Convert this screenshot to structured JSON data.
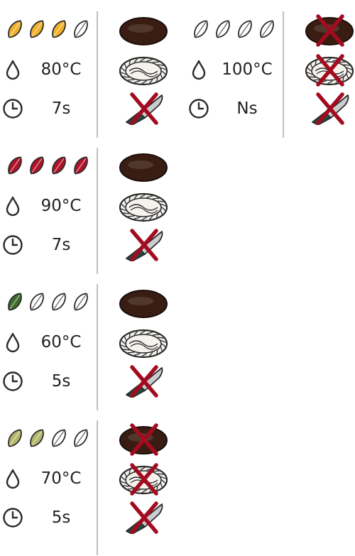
{
  "cards": [
    {
      "leaf_colors": [
        "#f1b12a",
        "#f1b12a",
        "#f1b12a",
        "#ffffff"
      ],
      "temperature": "80°C",
      "time": "7s",
      "lid_allowed": true,
      "gaiwan_allowed": true,
      "knife_allowed": false
    },
    {
      "leaf_colors": [
        "#ffffff",
        "#ffffff",
        "#ffffff",
        "#ffffff"
      ],
      "temperature": "100°C",
      "time": "Ns",
      "lid_allowed": false,
      "gaiwan_allowed": false,
      "knife_allowed": false
    },
    {
      "leaf_colors": [
        "#b01228",
        "#b01228",
        "#b01228",
        "#b01228"
      ],
      "temperature": "90°C",
      "time": "7s",
      "lid_allowed": true,
      "gaiwan_allowed": true,
      "knife_allowed": false
    },
    {
      "leaf_colors": [
        "#3d6b2e",
        "#ffffff",
        "#ffffff",
        "#ffffff"
      ],
      "temperature": "60°C",
      "time": "5s",
      "lid_allowed": true,
      "gaiwan_allowed": true,
      "knife_allowed": false
    },
    {
      "leaf_colors": [
        "#b4b86a",
        "#b4b86a",
        "#ffffff",
        "#ffffff"
      ],
      "temperature": "70°C",
      "time": "5s",
      "lid_allowed": false,
      "gaiwan_allowed": false,
      "knife_allowed": false
    }
  ],
  "colors": {
    "outline": "#2b2b2b",
    "cross": "#a30b1f",
    "lid": "#3a1d12",
    "divider": "#c9bfb0"
  },
  "icons": {
    "temperature": "droplet-icon",
    "time": "clock-icon",
    "lid": "pu-erh-cake-icon",
    "gaiwan": "woven-plate-icon",
    "knife": "tea-knife-icon"
  }
}
